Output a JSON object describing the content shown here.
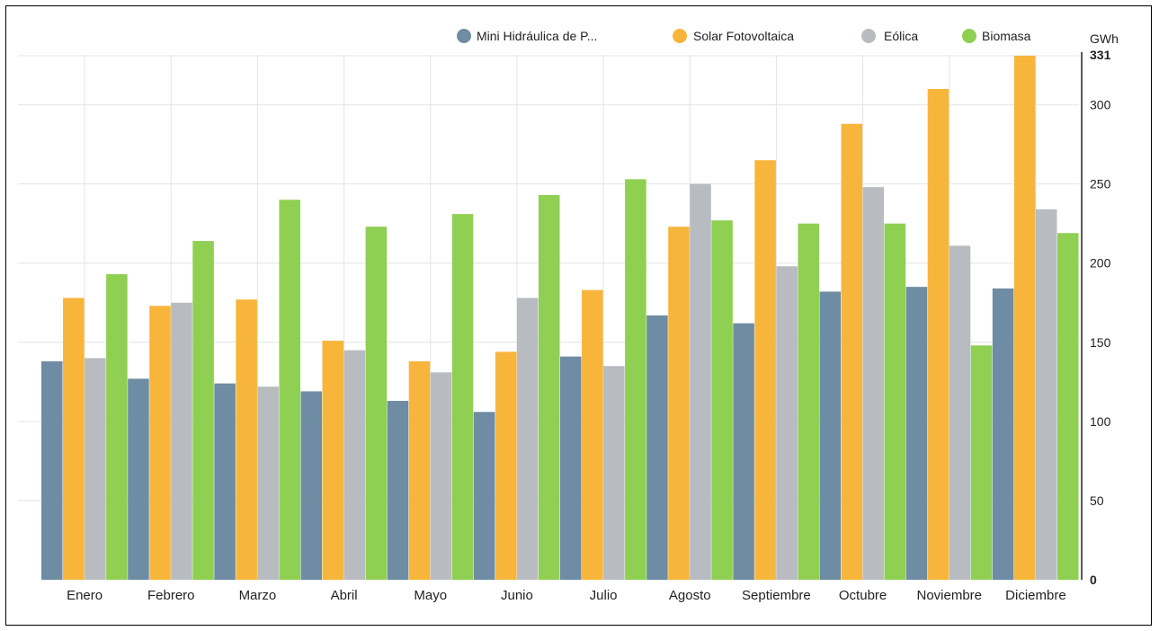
{
  "chart_data": {
    "type": "bar",
    "title": "",
    "xlabel": "",
    "ylabel": "GWh",
    "y_axis_position": "right",
    "ylim": [
      0,
      331
    ],
    "y_ticks": [
      0,
      50,
      100,
      150,
      200,
      250,
      300,
      331
    ],
    "grid": true,
    "legend_position": "top-right",
    "categories": [
      "Enero",
      "Febrero",
      "Marzo",
      "Abril",
      "Mayo",
      "Junio",
      "Julio",
      "Agosto",
      "Septiembre",
      "Octubre",
      "Noviembre",
      "Diciembre"
    ],
    "series": [
      {
        "name": "Mini Hidráulica de P...",
        "color": "#6e8ca3",
        "values": [
          138,
          127,
          124,
          119,
          113,
          106,
          141,
          167,
          162,
          182,
          185,
          184
        ]
      },
      {
        "name": "Solar Fotovoltaica",
        "color": "#f7b53b",
        "values": [
          178,
          173,
          177,
          151,
          138,
          144,
          183,
          223,
          265,
          288,
          310,
          331
        ]
      },
      {
        "name": "Eólica",
        "color": "#b8bcc0",
        "values": [
          140,
          175,
          122,
          145,
          131,
          178,
          135,
          250,
          198,
          248,
          211,
          234
        ]
      },
      {
        "name": "Biomasa",
        "color": "#8fcf52",
        "values": [
          193,
          214,
          240,
          223,
          231,
          243,
          253,
          227,
          225,
          225,
          148,
          219
        ]
      }
    ]
  }
}
